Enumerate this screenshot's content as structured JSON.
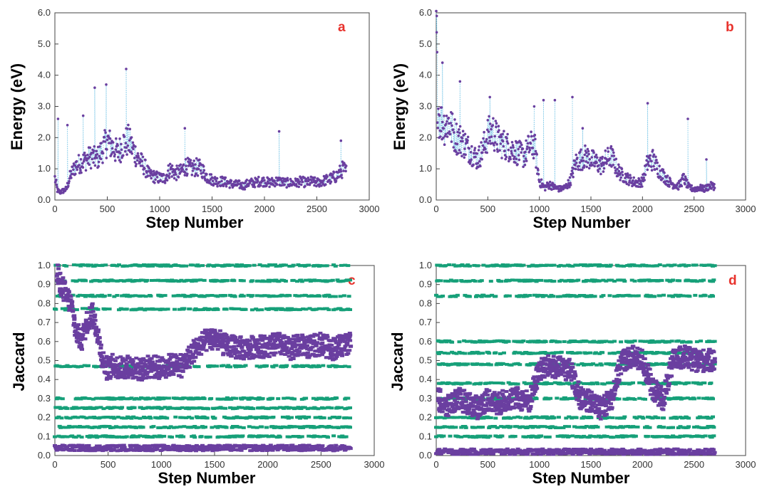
{
  "chart_data": [
    {
      "type": "scatter",
      "panel_label": "a",
      "xlabel": "Step Number",
      "ylabel": "Energy (eV)",
      "xlim": [
        0,
        3000
      ],
      "ylim": [
        0,
        6.0
      ],
      "x_ticks": [
        "0",
        "500",
        "1000",
        "1500",
        "2000",
        "2500",
        "3000"
      ],
      "y_ticks": [
        "0.0",
        "1.0",
        "2.0",
        "3.0",
        "4.0",
        "5.0",
        "6.0"
      ],
      "connector_color": "#7ec8e8",
      "series": [
        {
          "color": "#6a3fa0",
          "x": [
            0,
            25,
            50,
            80,
            110,
            150,
            200,
            250,
            300,
            350,
            400,
            450,
            500,
            550,
            600,
            650,
            700,
            750,
            800,
            850,
            900,
            950,
            1000,
            1050,
            1100,
            1150,
            1200,
            1250,
            1300,
            1350,
            1400,
            1450,
            1500,
            1550,
            1600,
            1650,
            1700,
            1750,
            1800,
            1850,
            1900,
            1950,
            2000,
            2050,
            2100,
            2150,
            2200,
            2250,
            2300,
            2350,
            2400,
            2450,
            2500,
            2550,
            2600,
            2650,
            2700,
            2750,
            2780
          ],
          "y": [
            0.7,
            0.3,
            0.25,
            0.3,
            0.35,
            0.8,
            1.1,
            1.2,
            1.3,
            1.4,
            1.3,
            1.6,
            1.9,
            1.7,
            1.5,
            1.8,
            1.9,
            1.6,
            1.3,
            1.1,
            0.8,
            0.75,
            0.7,
            0.7,
            1.0,
            0.85,
            0.9,
            1.1,
            1.0,
            1.05,
            1.0,
            0.75,
            0.65,
            0.6,
            0.6,
            0.55,
            0.5,
            0.5,
            0.45,
            0.55,
            0.55,
            0.6,
            0.6,
            0.55,
            0.6,
            0.6,
            0.55,
            0.55,
            0.55,
            0.6,
            0.55,
            0.6,
            0.55,
            0.6,
            0.65,
            0.7,
            0.8,
            1.0,
            0.9
          ],
          "spikes": [
            [
              30,
              2.6
            ],
            [
              120,
              2.4
            ],
            [
              270,
              2.7
            ],
            [
              380,
              3.6
            ],
            [
              490,
              3.7
            ],
            [
              680,
              4.2
            ],
            [
              1240,
              2.3
            ],
            [
              2140,
              2.2
            ],
            [
              2730,
              1.9
            ]
          ]
        }
      ]
    },
    {
      "type": "scatter",
      "panel_label": "b",
      "xlabel": "Step Number",
      "ylabel": "Energy (eV)",
      "xlim": [
        0,
        3000
      ],
      "ylim": [
        0,
        6.0
      ],
      "x_ticks": [
        "0",
        "500",
        "1000",
        "1500",
        "2000",
        "2500",
        "3000"
      ],
      "y_ticks": [
        "0.0",
        "1.0",
        "2.0",
        "3.0",
        "4.0",
        "5.0",
        "6.0"
      ],
      "connector_color": "#7ec8e8",
      "series": [
        {
          "color": "#6a3fa0",
          "x": [
            0,
            10,
            25,
            50,
            80,
            120,
            160,
            200,
            250,
            300,
            350,
            400,
            450,
            500,
            550,
            600,
            650,
            700,
            750,
            800,
            850,
            900,
            950,
            1000,
            1050,
            1100,
            1150,
            1200,
            1250,
            1300,
            1350,
            1400,
            1450,
            1500,
            1550,
            1600,
            1650,
            1700,
            1750,
            1800,
            1850,
            1900,
            1950,
            2000,
            2050,
            2100,
            2150,
            2200,
            2250,
            2300,
            2350,
            2400,
            2450,
            2500,
            2550,
            2600,
            2650,
            2700
          ],
          "y": [
            5.5,
            3.5,
            2.7,
            2.5,
            2.4,
            2.5,
            2.2,
            2.0,
            1.9,
            1.7,
            1.5,
            1.3,
            1.6,
            2.1,
            2.2,
            1.9,
            1.8,
            1.7,
            1.6,
            1.5,
            1.4,
            1.7,
            1.8,
            0.6,
            0.4,
            0.5,
            0.4,
            0.35,
            0.4,
            0.6,
            1.2,
            1.3,
            1.4,
            1.3,
            1.2,
            1.1,
            1.3,
            1.4,
            1.0,
            0.8,
            0.7,
            0.6,
            0.55,
            0.6,
            1.2,
            1.3,
            1.0,
            0.8,
            0.6,
            0.5,
            0.45,
            0.7,
            0.4,
            0.35,
            0.4,
            0.35,
            0.45,
            0.45
          ],
          "spikes": [
            [
              5,
              5.9
            ],
            [
              60,
              4.4
            ],
            [
              230,
              3.8
            ],
            [
              520,
              3.3
            ],
            [
              950,
              3.0
            ],
            [
              1040,
              3.2
            ],
            [
              1150,
              3.2
            ],
            [
              1320,
              3.3
            ],
            [
              1420,
              2.3
            ],
            [
              2050,
              3.1
            ],
            [
              2440,
              2.6
            ],
            [
              2620,
              1.3
            ]
          ]
        }
      ]
    },
    {
      "type": "scatter",
      "panel_label": "c",
      "xlabel": "Step Number",
      "ylabel": "Jaccard",
      "xlim": [
        0,
        3000
      ],
      "ylim": [
        0,
        1.0
      ],
      "x_ticks": [
        "0",
        "500",
        "1000",
        "1500",
        "2000",
        "2500",
        "3000"
      ],
      "y_ticks": [
        "0.0",
        "0.1",
        "0.2",
        "0.3",
        "0.4",
        "0.5",
        "0.6",
        "0.7",
        "0.8",
        "0.9",
        "1.0"
      ],
      "series": [
        {
          "color": "#6a3fa0",
          "x": [
            20,
            60,
            100,
            150,
            200,
            250,
            300,
            350,
            400,
            450,
            500,
            550,
            600,
            700,
            800,
            900,
            1000,
            1100,
            1200,
            1300,
            1400,
            1500,
            1600,
            1700,
            1800,
            1900,
            2000,
            2100,
            2200,
            2300,
            2400,
            2500,
            2600,
            2700,
            2780
          ],
          "y": [
            0.95,
            0.9,
            0.85,
            0.8,
            0.65,
            0.6,
            0.7,
            0.75,
            0.65,
            0.5,
            0.45,
            0.48,
            0.46,
            0.47,
            0.45,
            0.47,
            0.46,
            0.48,
            0.47,
            0.55,
            0.6,
            0.62,
            0.58,
            0.57,
            0.56,
            0.58,
            0.57,
            0.59,
            0.56,
            0.58,
            0.57,
            0.59,
            0.56,
            0.58,
            0.6
          ],
          "low_band": 0.04
        },
        {
          "color": "#16a079",
          "levels": [
            1.0,
            0.92,
            0.84,
            0.77,
            0.47,
            0.3,
            0.25,
            0.2,
            0.15,
            0.1
          ]
        }
      ]
    },
    {
      "type": "scatter",
      "panel_label": "d",
      "xlabel": "Step Number",
      "ylabel": "Jaccard",
      "xlim": [
        0,
        3000
      ],
      "ylim": [
        0,
        1.0
      ],
      "x_ticks": [
        "0",
        "500",
        "1000",
        "1500",
        "2000",
        "2500",
        "3000"
      ],
      "y_ticks": [
        "0.0",
        "0.1",
        "0.2",
        "0.3",
        "0.4",
        "0.5",
        "0.6",
        "0.7",
        "0.8",
        "0.9",
        "1.0"
      ],
      "series": [
        {
          "color": "#6a3fa0",
          "x": [
            20,
            100,
            200,
            300,
            400,
            500,
            600,
            700,
            800,
            900,
            1000,
            1100,
            1200,
            1300,
            1400,
            1500,
            1600,
            1700,
            1800,
            1900,
            2000,
            2100,
            2200,
            2300,
            2400,
            2500,
            2600,
            2700
          ],
          "y": [
            0.3,
            0.25,
            0.3,
            0.28,
            0.25,
            0.3,
            0.27,
            0.3,
            0.3,
            0.28,
            0.45,
            0.47,
            0.46,
            0.45,
            0.3,
            0.28,
            0.25,
            0.3,
            0.5,
            0.52,
            0.5,
            0.35,
            0.3,
            0.5,
            0.52,
            0.5,
            0.5,
            0.5
          ],
          "low_band": 0.02
        },
        {
          "color": "#16a079",
          "levels": [
            1.0,
            0.92,
            0.84,
            0.6,
            0.54,
            0.48,
            0.38,
            0.3,
            0.2,
            0.15,
            0.1
          ]
        }
      ]
    }
  ]
}
